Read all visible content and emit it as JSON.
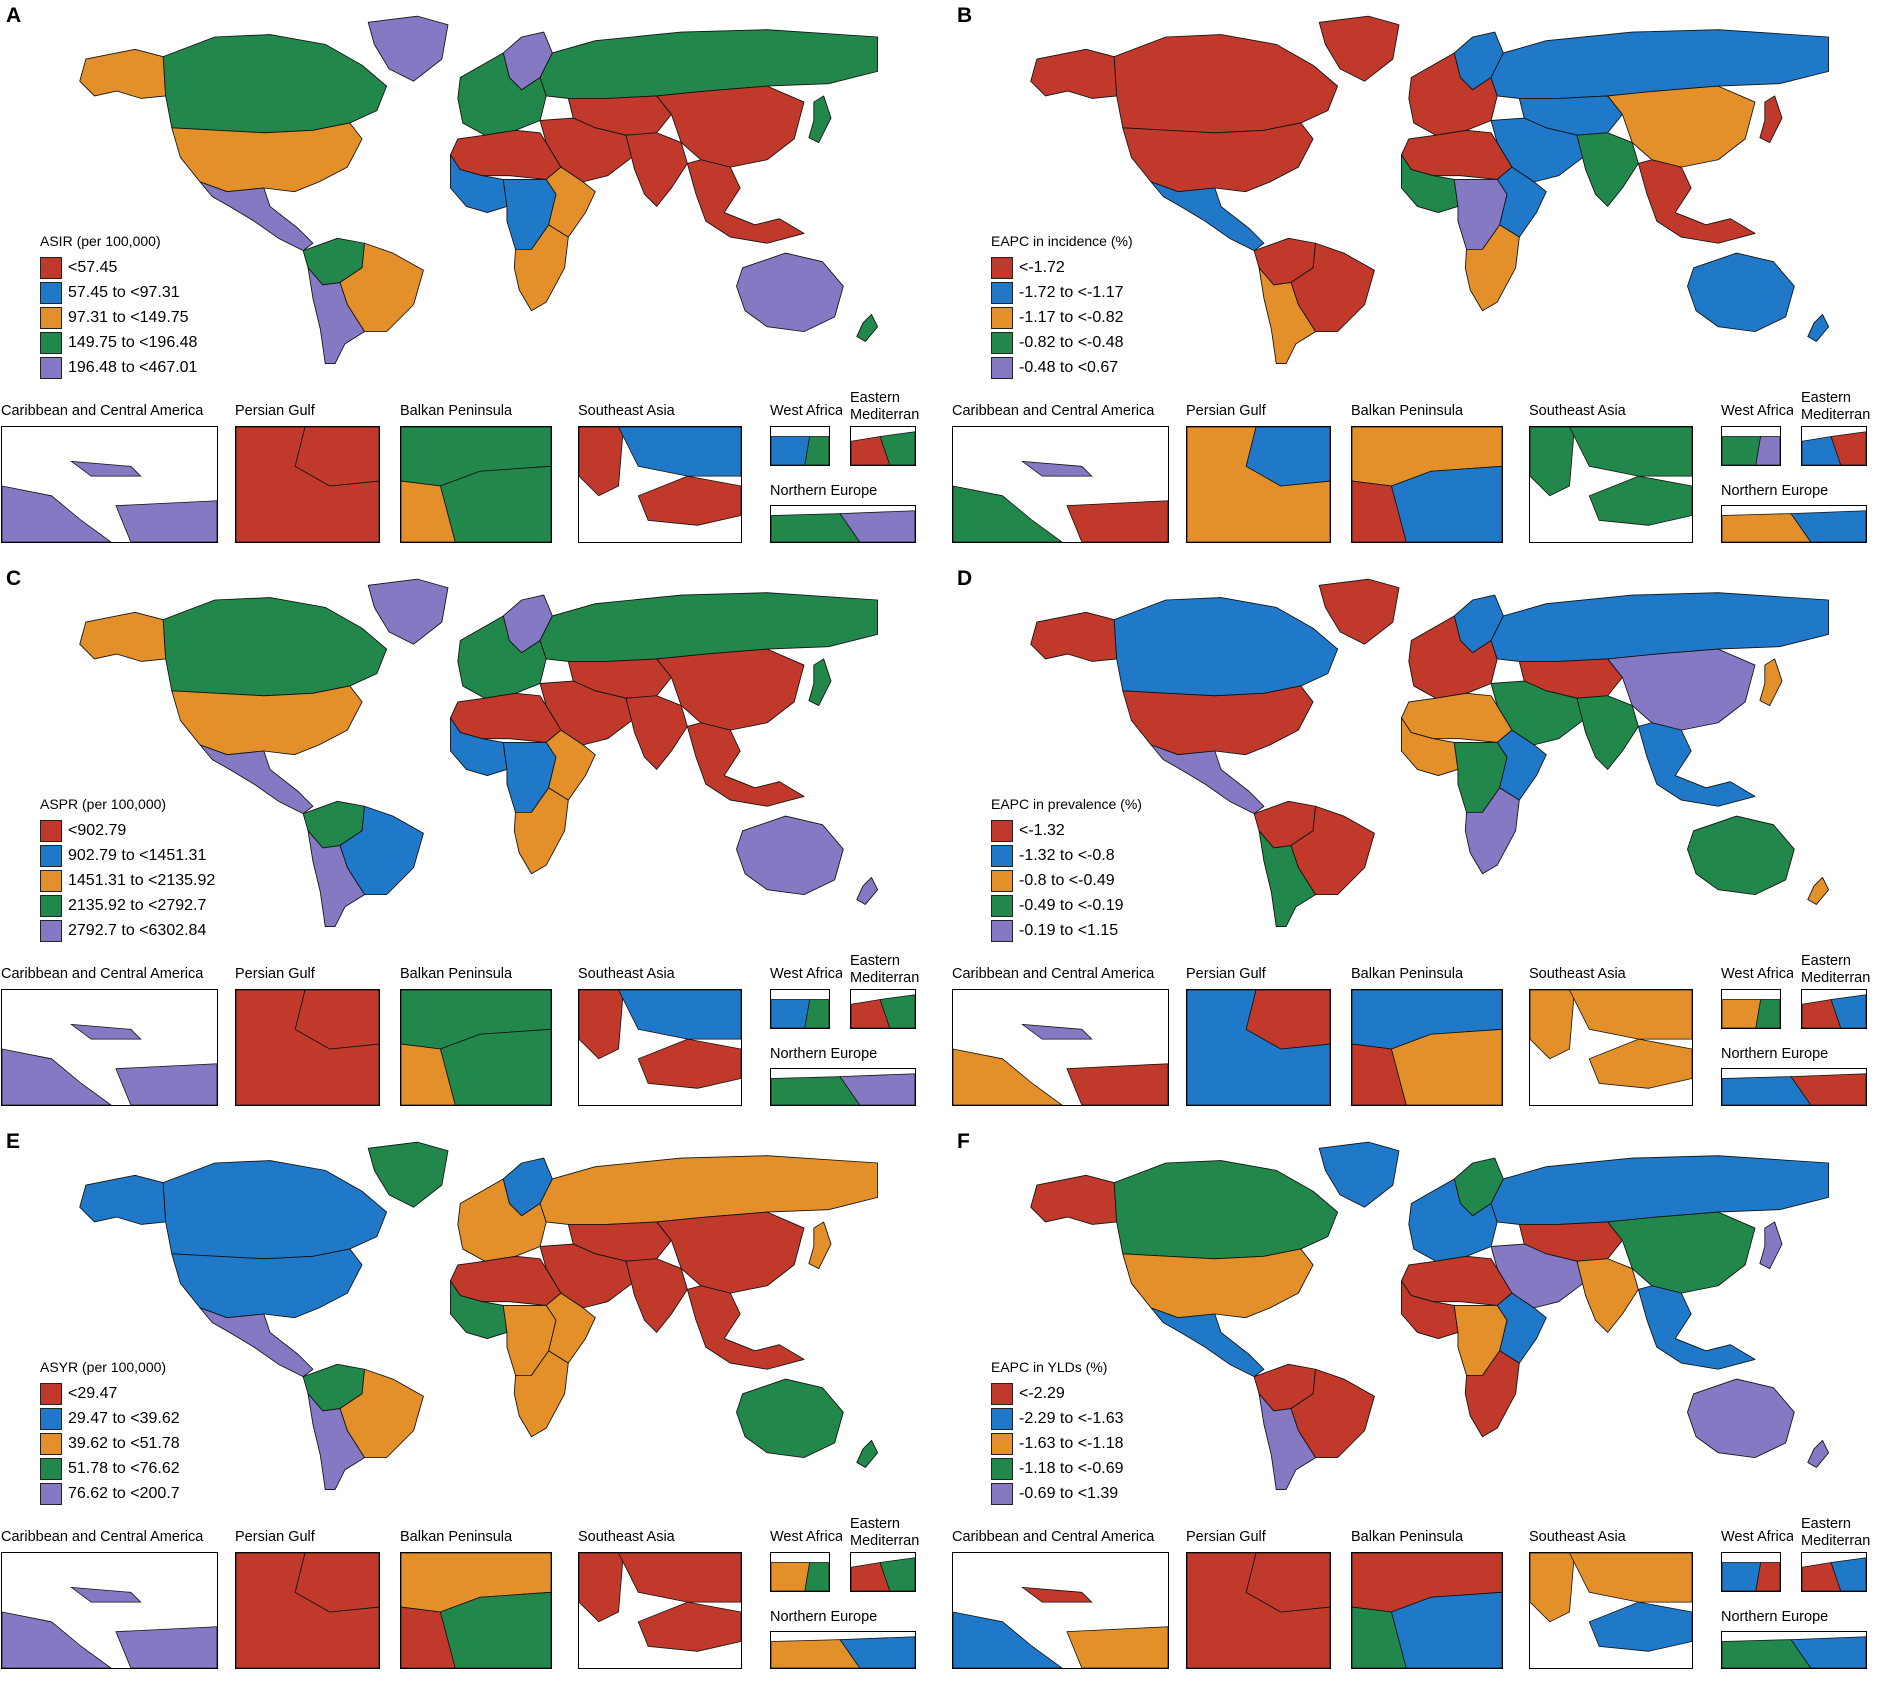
{
  "colors": {
    "red": "#c0392b",
    "blue": "#1f78c8",
    "orange": "#e3902a",
    "green": "#21874a",
    "purple": "#8579c4"
  },
  "inset_titles": {
    "caribbean": "Caribbean and Central America",
    "persian": "Persian Gulf",
    "balkan": "Balkan Peninsula",
    "seasia": "Southeast Asia",
    "westafrica": "West Africa",
    "eastmed": "Eastern Mediterranean",
    "northeurope": "Northern Europe"
  },
  "panels": [
    {
      "letter": "A",
      "legend_title": "ASIR (per 100,000)",
      "legend": [
        "<57.45",
        "57.45 to <97.31",
        "97.31 to <149.75",
        "149.75 to <196.48",
        "196.48 to <467.01"
      ],
      "regions": {
        "north_america_north": "green",
        "alaska": "orange",
        "greenland": "purple",
        "usa": "orange",
        "mexico_central": "purple",
        "south_america_north": "green",
        "brazil": "orange",
        "south_america_south": "purple",
        "europe_west": "green",
        "scandinavia": "purple",
        "russia": "green",
        "north_africa": "red",
        "west_africa": "blue",
        "central_africa": "blue",
        "east_africa": "orange",
        "southern_africa": "orange",
        "middle_east": "red",
        "south_asia": "red",
        "china": "red",
        "central_asia": "red",
        "southeast_asia": "red",
        "japan": "green",
        "australia": "purple",
        "new_zealand": "green"
      },
      "insets": {
        "caribbean": [
          "purple",
          "purple",
          "purple"
        ],
        "persian": [
          "red",
          "red"
        ],
        "balkan": [
          "green",
          "orange",
          "green"
        ],
        "seasia": [
          "red",
          "red",
          "blue"
        ],
        "westafrica": [
          "blue",
          "green"
        ],
        "eastmed": [
          "red",
          "green"
        ],
        "northeurope": [
          "green",
          "purple"
        ]
      }
    },
    {
      "letter": "B",
      "legend_title": "EAPC in incidence (%)",
      "legend": [
        "<-1.72",
        "-1.72 to <-1.17",
        "-1.17 to <-0.82",
        "-0.82 to <-0.48",
        "-0.48 to <0.67"
      ],
      "regions": {
        "north_america_north": "red",
        "alaska": "red",
        "greenland": "red",
        "usa": "red",
        "mexico_central": "blue",
        "south_america_north": "red",
        "brazil": "red",
        "south_america_south": "orange",
        "europe_west": "red",
        "scandinavia": "blue",
        "russia": "blue",
        "north_africa": "red",
        "west_africa": "green",
        "central_africa": "purple",
        "east_africa": "blue",
        "southern_africa": "orange",
        "middle_east": "blue",
        "south_asia": "green",
        "china": "orange",
        "central_asia": "blue",
        "southeast_asia": "red",
        "japan": "red",
        "australia": "blue",
        "new_zealand": "blue"
      },
      "insets": {
        "caribbean": [
          "green",
          "purple",
          "red"
        ],
        "persian": [
          "orange",
          "blue"
        ],
        "balkan": [
          "orange",
          "red",
          "blue"
        ],
        "seasia": [
          "green",
          "green",
          "green"
        ],
        "westafrica": [
          "green",
          "purple"
        ],
        "eastmed": [
          "blue",
          "red"
        ],
        "northeurope": [
          "orange",
          "blue"
        ]
      }
    },
    {
      "letter": "C",
      "legend_title": "ASPR (per 100,000)",
      "legend": [
        "<902.79",
        "902.79 to <1451.31",
        "1451.31 to <2135.92",
        "2135.92 to <2792.7",
        "2792.7 to <6302.84"
      ],
      "regions": {
        "north_america_north": "green",
        "alaska": "orange",
        "greenland": "purple",
        "usa": "orange",
        "mexico_central": "purple",
        "south_america_north": "green",
        "brazil": "blue",
        "south_america_south": "purple",
        "europe_west": "green",
        "scandinavia": "purple",
        "russia": "green",
        "north_africa": "red",
        "west_africa": "blue",
        "central_africa": "blue",
        "east_africa": "orange",
        "southern_africa": "orange",
        "middle_east": "red",
        "south_asia": "red",
        "china": "red",
        "central_asia": "red",
        "southeast_asia": "red",
        "japan": "green",
        "australia": "purple",
        "new_zealand": "purple"
      },
      "insets": {
        "caribbean": [
          "purple",
          "purple",
          "purple"
        ],
        "persian": [
          "red",
          "red"
        ],
        "balkan": [
          "green",
          "orange",
          "green"
        ],
        "seasia": [
          "red",
          "red",
          "blue"
        ],
        "westafrica": [
          "blue",
          "green"
        ],
        "eastmed": [
          "red",
          "green"
        ],
        "northeurope": [
          "green",
          "purple"
        ]
      }
    },
    {
      "letter": "D",
      "legend_title": "EAPC in prevalence (%)",
      "legend": [
        "<-1.32",
        "-1.32 to <-0.8",
        "-0.8 to <-0.49",
        "-0.49 to <-0.19",
        "-0.19 to <1.15"
      ],
      "regions": {
        "north_america_north": "blue",
        "alaska": "red",
        "greenland": "red",
        "usa": "red",
        "mexico_central": "purple",
        "south_america_north": "red",
        "brazil": "red",
        "south_america_south": "green",
        "europe_west": "red",
        "scandinavia": "blue",
        "russia": "blue",
        "north_africa": "orange",
        "west_africa": "orange",
        "central_africa": "green",
        "east_africa": "blue",
        "southern_africa": "purple",
        "middle_east": "green",
        "south_asia": "green",
        "china": "purple",
        "central_asia": "red",
        "southeast_asia": "blue",
        "japan": "orange",
        "australia": "green",
        "new_zealand": "orange"
      },
      "insets": {
        "caribbean": [
          "orange",
          "purple",
          "red"
        ],
        "persian": [
          "blue",
          "red"
        ],
        "balkan": [
          "blue",
          "red",
          "orange"
        ],
        "seasia": [
          "orange",
          "orange",
          "orange"
        ],
        "westafrica": [
          "orange",
          "green"
        ],
        "eastmed": [
          "red",
          "blue"
        ],
        "northeurope": [
          "blue",
          "red"
        ]
      }
    },
    {
      "letter": "E",
      "legend_title": "ASYR (per 100,000)",
      "legend": [
        "<29.47",
        "29.47 to <39.62",
        "39.62 to <51.78",
        "51.78 to <76.62",
        "76.62 to <200.7"
      ],
      "regions": {
        "north_america_north": "blue",
        "alaska": "blue",
        "greenland": "green",
        "usa": "blue",
        "mexico_central": "purple",
        "south_america_north": "green",
        "brazil": "orange",
        "south_america_south": "purple",
        "europe_west": "orange",
        "scandinavia": "blue",
        "russia": "orange",
        "north_africa": "red",
        "west_africa": "green",
        "central_africa": "orange",
        "east_africa": "orange",
        "southern_africa": "orange",
        "middle_east": "red",
        "south_asia": "red",
        "china": "red",
        "central_asia": "red",
        "southeast_asia": "red",
        "japan": "orange",
        "australia": "green",
        "new_zealand": "green"
      },
      "insets": {
        "caribbean": [
          "purple",
          "purple",
          "purple"
        ],
        "persian": [
          "red",
          "red"
        ],
        "balkan": [
          "orange",
          "red",
          "green"
        ],
        "seasia": [
          "red",
          "red",
          "red"
        ],
        "westafrica": [
          "orange",
          "green"
        ],
        "eastmed": [
          "red",
          "green"
        ],
        "northeurope": [
          "orange",
          "blue"
        ]
      }
    },
    {
      "letter": "F",
      "legend_title": "EAPC in YLDs  (%)",
      "legend": [
        "<-2.29",
        "-2.29 to <-1.63",
        "-1.63 to <-1.18",
        "-1.18 to <-0.69",
        "-0.69 to <1.39"
      ],
      "regions": {
        "north_america_north": "green",
        "alaska": "red",
        "greenland": "blue",
        "usa": "orange",
        "mexico_central": "blue",
        "south_america_north": "red",
        "brazil": "red",
        "south_america_south": "purple",
        "europe_west": "blue",
        "scandinavia": "green",
        "russia": "blue",
        "north_africa": "red",
        "west_africa": "red",
        "central_africa": "orange",
        "east_africa": "blue",
        "southern_africa": "red",
        "middle_east": "purple",
        "south_asia": "orange",
        "china": "green",
        "central_asia": "red",
        "southeast_asia": "blue",
        "japan": "purple",
        "australia": "purple",
        "new_zealand": "purple"
      },
      "insets": {
        "caribbean": [
          "blue",
          "red",
          "orange"
        ],
        "persian": [
          "red",
          "red"
        ],
        "balkan": [
          "red",
          "green",
          "blue"
        ],
        "seasia": [
          "orange",
          "blue",
          "orange"
        ],
        "westafrica": [
          "blue",
          "red"
        ],
        "eastmed": [
          "red",
          "blue"
        ],
        "northeurope": [
          "green",
          "blue"
        ]
      }
    }
  ]
}
